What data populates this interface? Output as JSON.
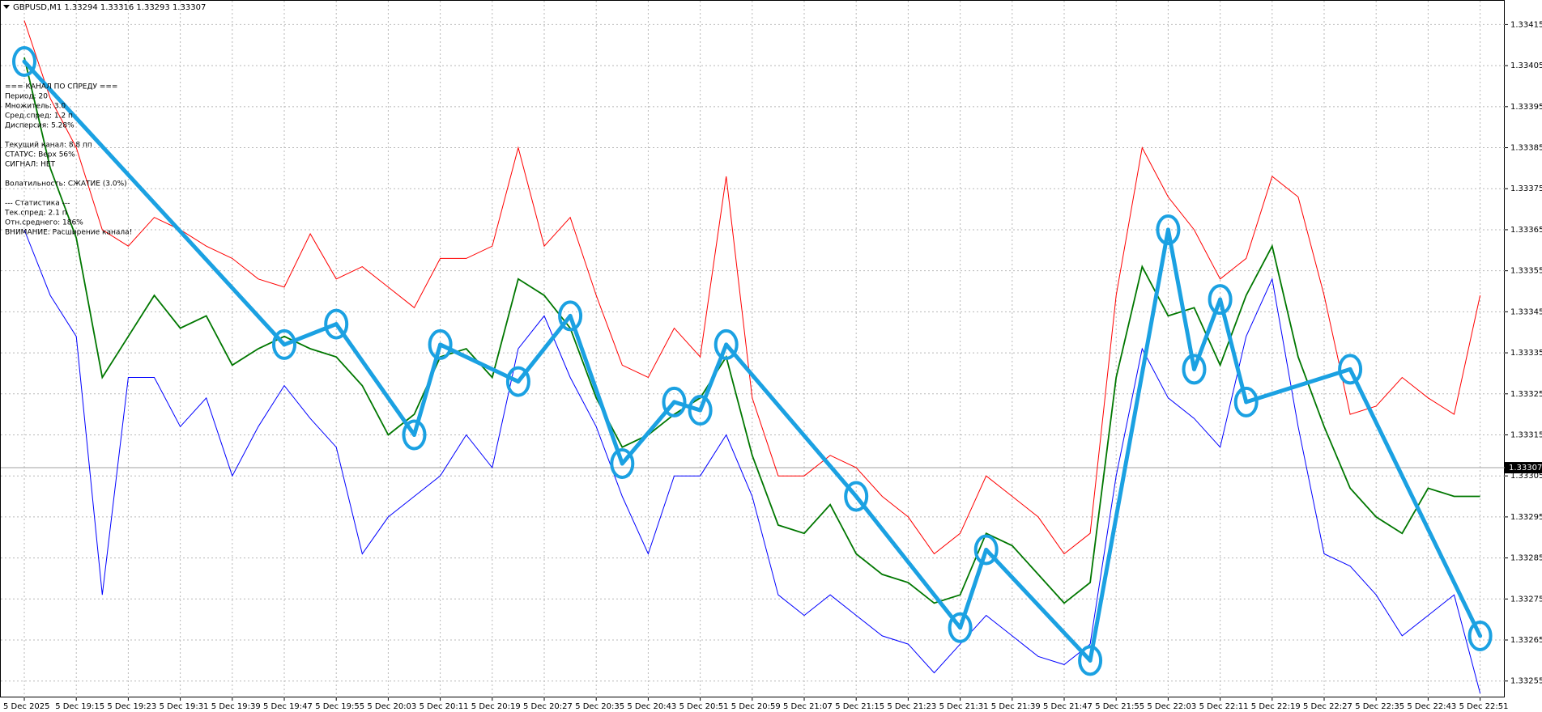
{
  "chart_data": {
    "type": "line",
    "title": "GBPUSD,M1  1.33294 1.33316 1.33293 1.33307",
    "indicator_text": [
      [
        "=== КАНАЛ ПО СПРЕДУ ===",
        "Период: 20",
        "Множитель: 3.0",
        "Сред.спред: 1.2 п",
        "Дисперсия: 5.28%"
      ],
      [
        "Текущий канал: 8.8 пп",
        "СТАТУС: Верх 56%",
        "СИГНАЛ: НЕТ"
      ],
      [
        "Волатильность: СЖАТИЕ (3.0%)"
      ],
      [
        "--- Статистика ---",
        "Тек.спред: 2.1 п",
        "Отн.среднего: 186%",
        "ВНИМАНИЕ: Расширение канала!"
      ]
    ],
    "categories": [
      "5 Dec 2025",
      null,
      "5 Dec 19:15",
      null,
      "5 Dec 19:23",
      null,
      "5 Dec 19:31",
      null,
      "5 Dec 19:39",
      null,
      "5 Dec 19:47",
      null,
      "5 Dec 19:55",
      null,
      "5 Dec 20:03",
      null,
      "5 Dec 20:11",
      null,
      "5 Dec 20:19",
      null,
      "5 Dec 20:27",
      null,
      "5 Dec 20:35",
      null,
      "5 Dec 20:43",
      null,
      "5 Dec 20:51",
      null,
      "5 Dec 20:59",
      null,
      "5 Dec 21:07",
      null,
      "5 Dec 21:15",
      null,
      "5 Dec 21:23",
      null,
      "5 Dec 21:31",
      null,
      "5 Dec 21:39",
      null,
      "5 Dec 21:47",
      null,
      "5 Dec 21:55",
      null,
      "5 Dec 22:03",
      null,
      "5 Dec 22:11",
      null,
      "5 Dec 22:19",
      null,
      "5 Dec 22:27",
      null,
      "5 Dec 22:35",
      null,
      "5 Dec 22:43",
      null,
      "5 Dec 22:51"
    ],
    "series": [
      {
        "color": "#ff0000",
        "values": [
          1.33416,
          1.33397,
          1.33385,
          1.33365,
          1.33361,
          1.33368,
          1.33365,
          1.33361,
          1.33358,
          1.33353,
          1.33351,
          1.33364,
          1.33353,
          1.33356,
          1.33351,
          1.33346,
          1.33358,
          1.33358,
          1.33361,
          1.33385,
          1.33361,
          1.33368,
          1.33349,
          1.33332,
          1.33329,
          1.33341,
          1.33334,
          1.33378,
          1.33324,
          1.33305,
          1.33305,
          1.3331,
          1.33307,
          1.333,
          1.33295,
          1.33286,
          1.33291,
          1.33305,
          1.333,
          1.33295,
          1.33286,
          1.33291,
          1.33349,
          1.33385,
          1.33373,
          1.33365,
          1.33353,
          1.33358,
          1.33378,
          1.33373,
          1.33349,
          1.3332,
          1.33322,
          1.33329,
          1.33324,
          1.3332,
          1.33349
        ]
      },
      {
        "color": "#007700",
        "values": [
          1.33407,
          1.3338,
          1.33363,
          1.33329,
          1.33339,
          1.33349,
          1.33341,
          1.33344,
          1.33332,
          1.33336,
          1.33339,
          1.33336,
          1.33334,
          1.33327,
          1.33315,
          1.3332,
          1.33334,
          1.33336,
          1.33329,
          1.33353,
          1.33349,
          1.33341,
          1.33324,
          1.33312,
          1.33315,
          1.3332,
          1.33324,
          1.33334,
          1.3331,
          1.33293,
          1.33291,
          1.33298,
          1.33286,
          1.33281,
          1.33279,
          1.33274,
          1.33276,
          1.33291,
          1.33288,
          1.33281,
          1.33274,
          1.33279,
          1.33329,
          1.33356,
          1.33344,
          1.33346,
          1.33332,
          1.33349,
          1.33361,
          1.33334,
          1.33317,
          1.33302,
          1.33295,
          1.33291,
          1.33302,
          1.333,
          1.333
        ]
      },
      {
        "color": "#0000ff",
        "values": [
          1.33365,
          1.33349,
          1.33339,
          1.33276,
          1.33329,
          1.33329,
          1.33317,
          1.33324,
          1.33305,
          1.33317,
          1.33327,
          1.33319,
          1.33312,
          1.33286,
          1.33295,
          1.333,
          1.33305,
          1.33315,
          1.33307,
          1.33336,
          1.33344,
          1.33329,
          1.33317,
          1.333,
          1.33286,
          1.33305,
          1.33305,
          1.33315,
          1.333,
          1.33276,
          1.33271,
          1.33276,
          1.33271,
          1.33266,
          1.33264,
          1.33257,
          1.33264,
          1.33271,
          1.33266,
          1.33261,
          1.33259,
          1.33264,
          1.33305,
          1.33336,
          1.33324,
          1.33319,
          1.33312,
          1.33339,
          1.33353,
          1.33317,
          1.33286,
          1.33283,
          1.33276,
          1.33266,
          1.33271,
          1.33276,
          1.33252
        ]
      },
      {
        "color": "#1ba1e2",
        "values": [
          1.33406,
          null,
          null,
          null,
          null,
          null,
          null,
          null,
          null,
          null,
          1.33337,
          null,
          1.33342,
          null,
          null,
          1.33315,
          1.33337,
          null,
          null,
          1.33328,
          null,
          1.33344,
          null,
          1.33308,
          null,
          1.33323,
          1.33321,
          1.33337,
          null,
          null,
          null,
          null,
          1.333,
          null,
          null,
          null,
          1.33268,
          1.33287,
          null,
          null,
          null,
          1.3326,
          null,
          null,
          1.33365,
          1.33331,
          1.33348,
          1.33323,
          null,
          null,
          null,
          1.33331,
          null,
          null,
          null,
          null,
          1.33266
        ]
      }
    ],
    "last_price": 1.33307,
    "ylim": [
      1.33251,
      1.33421
    ],
    "yticks": [
      1.33255,
      1.33265,
      1.33275,
      1.33285,
      1.33295,
      1.33305,
      1.33315,
      1.33325,
      1.33335,
      1.33345,
      1.33355,
      1.33365,
      1.33375,
      1.33385,
      1.33395,
      1.33405,
      1.33415
    ],
    "grid": true
  }
}
